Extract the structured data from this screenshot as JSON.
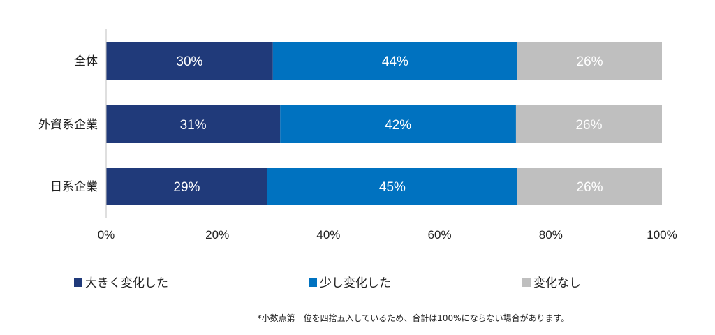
{
  "chart_data": {
    "type": "bar",
    "orientation": "horizontal",
    "stacked": true,
    "categories": [
      "全体",
      "外資系企業",
      "日系企業"
    ],
    "series": [
      {
        "name": "大きく変化した",
        "values": [
          30,
          31,
          29
        ],
        "labels": [
          "30%",
          "31%",
          "29%"
        ],
        "color": "#203a7a"
      },
      {
        "name": "少し変化した",
        "values": [
          44,
          42,
          45
        ],
        "labels": [
          "44%",
          "42%",
          "45%"
        ],
        "color": "#0072c0"
      },
      {
        "name": "変化なし",
        "values": [
          26,
          26,
          26
        ],
        "labels": [
          "26%",
          "26%",
          "26%"
        ],
        "color": "#bfbfbf"
      }
    ],
    "xlim": [
      0,
      100
    ],
    "xticks": [
      0,
      20,
      40,
      60,
      80,
      100
    ],
    "xtick_labels": [
      "0%",
      "20%",
      "40%",
      "60%",
      "80%",
      "100%"
    ],
    "grid": false,
    "legend_position": "bottom",
    "footnote": "*小数点第一位を四捨五入しているため、合計は100%にならない場合があります。"
  }
}
